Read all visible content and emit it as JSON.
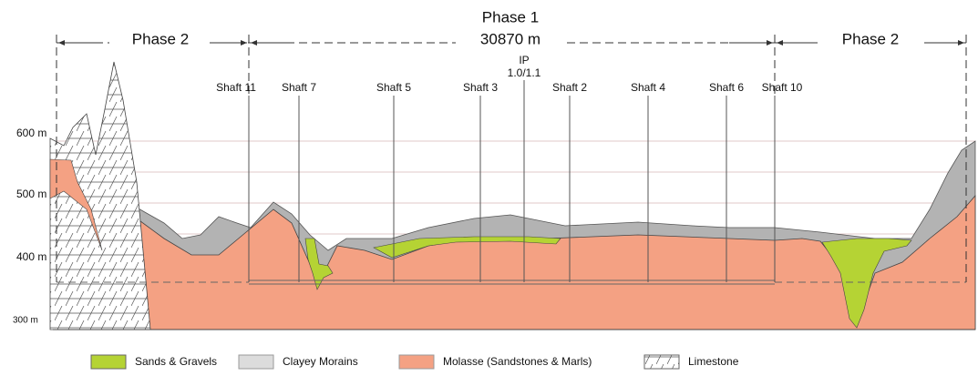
{
  "header": {
    "phase1": "Phase 1",
    "length": "30870 m",
    "phase2_left": "Phase 2",
    "phase2_right": "Phase 2"
  },
  "ip": {
    "line1": "IP",
    "line2": "1.0/1.1"
  },
  "shafts": [
    "Shaft 11",
    "Shaft 7",
    "Shaft 5",
    "Shaft 3",
    "Shaft 2",
    "Shaft 4",
    "Shaft 6",
    "Shaft 10"
  ],
  "elevations": [
    "600 m",
    "500 m",
    "400 m",
    "300 m"
  ],
  "legend": [
    "Sands & Gravels",
    "Clayey Morains",
    "Molasse (Sandstones & Marls)",
    "Limestone"
  ]
}
